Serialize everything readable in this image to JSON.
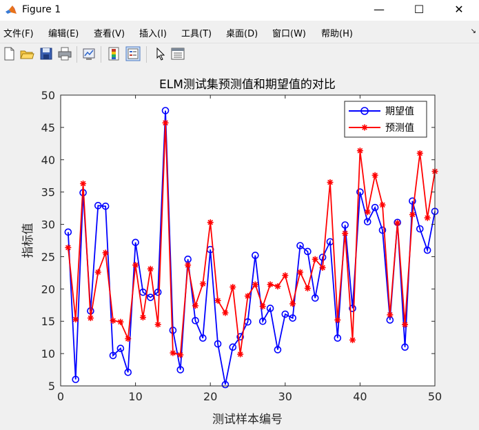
{
  "window": {
    "title": "Figure 1",
    "minimize": "—",
    "maximize": "☐",
    "close": "✕"
  },
  "menu": [
    "文件(F)",
    "编辑(E)",
    "查看(V)",
    "插入(I)",
    "工具(T)",
    "桌面(D)",
    "窗口(W)",
    "帮助(H)"
  ],
  "toolbar_icons": [
    "new-figure-icon",
    "open-file-icon",
    "save-icon",
    "print-icon",
    "link-plot-icon",
    "colorbar-icon",
    "legend-icon",
    "pointer-icon",
    "property-editor-icon"
  ],
  "colors": {
    "expected": "#0000ff",
    "predicted": "#ff0000"
  },
  "chart_data": {
    "type": "line",
    "title": "ELM测试集预测值和期望值的对比",
    "xlabel": "测试样本编号",
    "ylabel": "指标值",
    "xlim": [
      0,
      50
    ],
    "ylim": [
      5,
      50
    ],
    "xticks": [
      0,
      10,
      20,
      30,
      40,
      50
    ],
    "yticks": [
      5,
      10,
      15,
      20,
      25,
      30,
      35,
      40,
      45,
      50
    ],
    "grid": false,
    "legend_position": "top-right",
    "x": [
      1,
      2,
      3,
      4,
      5,
      6,
      7,
      8,
      9,
      10,
      11,
      12,
      13,
      14,
      15,
      16,
      17,
      18,
      19,
      20,
      21,
      22,
      23,
      24,
      25,
      26,
      27,
      28,
      29,
      30,
      31,
      32,
      33,
      34,
      35,
      36,
      37,
      38,
      39,
      40,
      41,
      42,
      43,
      44,
      45,
      46,
      47,
      48,
      49,
      50
    ],
    "series": [
      {
        "name": "期望值",
        "marker": "circle",
        "color": "#0000ff",
        "values": [
          28.8,
          6.0,
          34.9,
          16.6,
          32.9,
          32.8,
          9.7,
          10.8,
          7.1,
          27.2,
          19.5,
          18.7,
          19.5,
          47.6,
          13.6,
          7.5,
          24.6,
          15.1,
          12.4,
          26.1,
          11.5,
          5.2,
          11.0,
          12.6,
          14.9,
          25.2,
          15.0,
          17.0,
          10.6,
          16.1,
          15.5,
          26.7,
          25.8,
          18.6,
          24.9,
          27.3,
          12.4,
          29.9,
          17.0,
          35.0,
          30.4,
          32.6,
          29.1,
          15.2,
          30.3,
          11.0,
          33.6,
          29.3,
          26.0,
          32.0
        ]
      },
      {
        "name": "预测值",
        "marker": "asterisk",
        "color": "#ff0000",
        "values": [
          26.4,
          15.3,
          36.3,
          15.5,
          22.6,
          25.6,
          15.1,
          14.9,
          12.3,
          23.7,
          15.6,
          23.1,
          14.5,
          45.7,
          10.1,
          9.8,
          23.7,
          17.4,
          20.8,
          30.3,
          18.2,
          16.3,
          20.3,
          9.9,
          18.9,
          20.7,
          17.3,
          20.7,
          20.4,
          22.1,
          17.7,
          22.6,
          20.1,
          24.6,
          23.3,
          36.5,
          15.2,
          28.6,
          12.1,
          41.4,
          31.9,
          37.6,
          33.0,
          16.0,
          30.2,
          14.5,
          31.5,
          41.0,
          31.0,
          38.2
        ]
      }
    ]
  }
}
